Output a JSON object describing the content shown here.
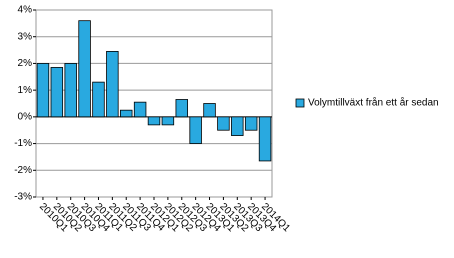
{
  "chart_data": {
    "type": "bar",
    "categories": [
      "2010Q1",
      "2010Q2",
      "2010Q3",
      "2010Q4",
      "2011Q1",
      "2011Q2",
      "2011Q3",
      "2011Q4",
      "2012Q1",
      "2012Q2",
      "2012Q3",
      "2012Q4",
      "2013Q1",
      "2013Q2",
      "2013Q3",
      "2013Q4",
      "2014Q1"
    ],
    "series": [
      {
        "name": "Volymtillväxt från ett år sedan",
        "color": "#29a9e0",
        "values": [
          2.0,
          1.85,
          2.0,
          3.6,
          1.3,
          2.45,
          0.25,
          0.55,
          -0.3,
          -0.3,
          0.65,
          -1.0,
          0.5,
          -0.5,
          -0.7,
          -0.5,
          -1.65
        ]
      }
    ],
    "ylim": [
      -3,
      4
    ],
    "yticks": [
      {
        "value": -3,
        "label": "-3%"
      },
      {
        "value": -2,
        "label": "-2%"
      },
      {
        "value": -1,
        "label": "-1%"
      },
      {
        "value": 0,
        "label": "0%"
      },
      {
        "value": 1,
        "label": "1%"
      },
      {
        "value": 2,
        "label": "2%"
      },
      {
        "value": 3,
        "label": "3%"
      },
      {
        "value": 4,
        "label": "4%"
      }
    ],
    "grid": true,
    "legend": "right"
  }
}
